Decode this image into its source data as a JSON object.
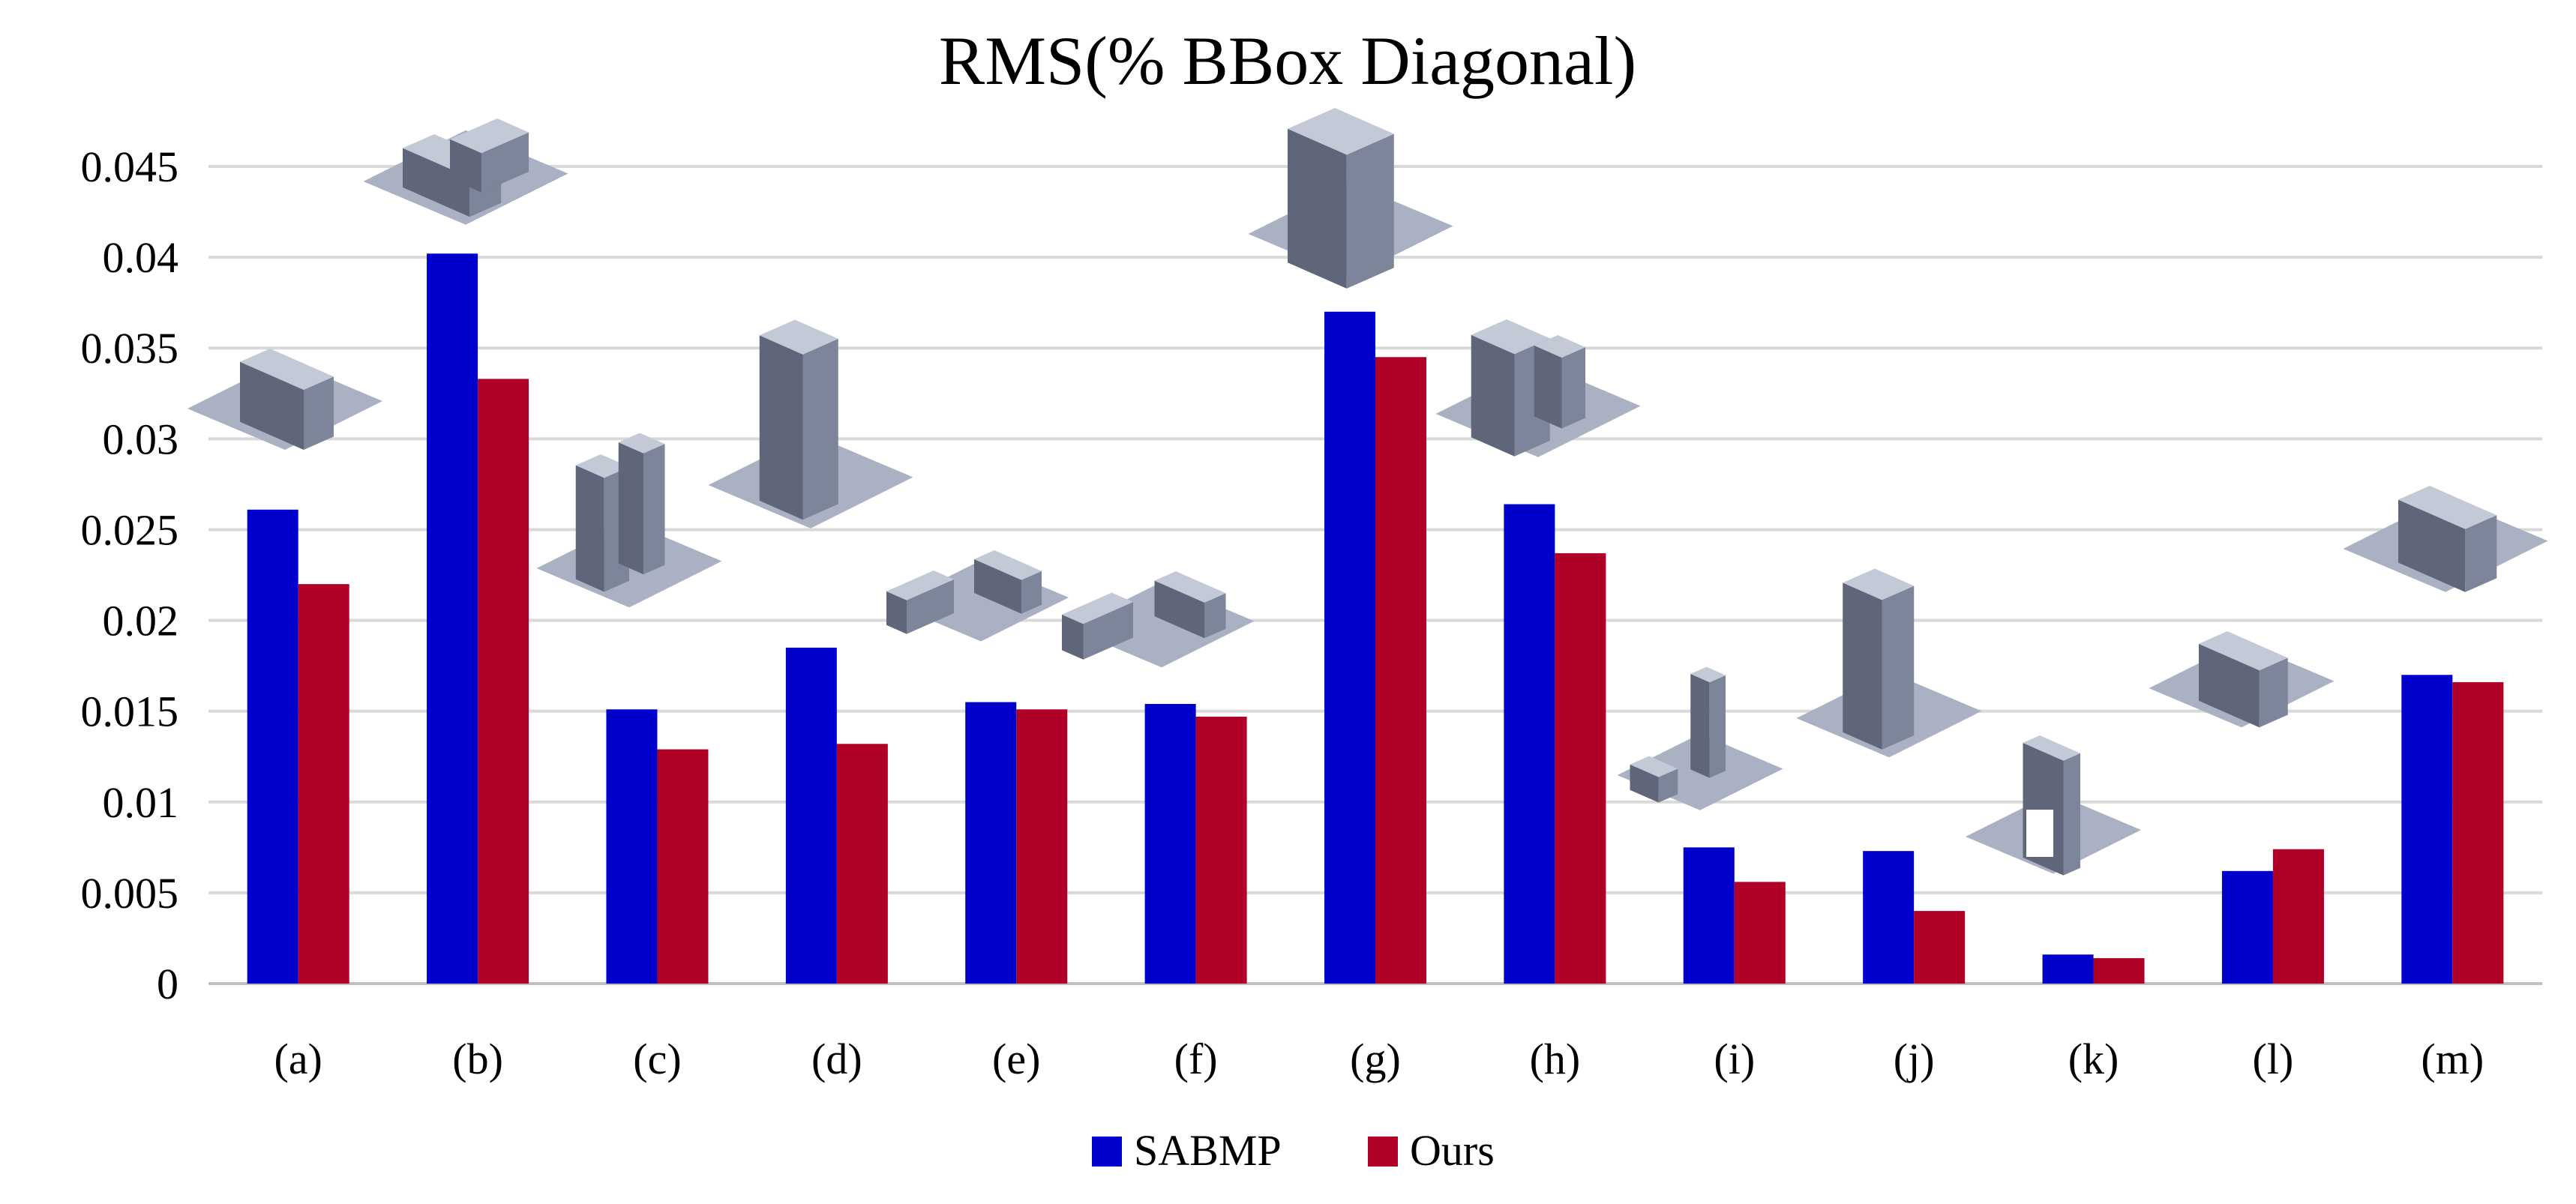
{
  "chart_data": {
    "type": "bar",
    "title": "RMS(% BBox Diagonal)",
    "xlabel": "",
    "ylabel": "",
    "categories": [
      "(a)",
      "(b)",
      "(c)",
      "(d)",
      "(e)",
      "(f)",
      "(g)",
      "(h)",
      "(i)",
      "(j)",
      "(k)",
      "(l)",
      "(m)"
    ],
    "ylim": [
      0,
      0.045
    ],
    "yticks": [
      "0",
      "0.005",
      "0.01",
      "0.015",
      "0.02",
      "0.025",
      "0.03",
      "0.035",
      "0.04",
      "0.045"
    ],
    "grid": true,
    "legend_position": "bottom-center",
    "series": [
      {
        "name": "SABMP",
        "color": "#0000cc",
        "values": [
          0.0261,
          0.0402,
          0.0151,
          0.0185,
          0.0155,
          0.0154,
          0.037,
          0.0264,
          0.0075,
          0.0073,
          0.0016,
          0.0062,
          0.017
        ]
      },
      {
        "name": "Ours",
        "color": "#b00028",
        "values": [
          0.022,
          0.0333,
          0.0129,
          0.0132,
          0.0151,
          0.0147,
          0.0345,
          0.0237,
          0.0056,
          0.004,
          0.0014,
          0.0074,
          0.0166
        ]
      }
    ],
    "thumbnails": [
      {
        "category": "(a)",
        "icon": "long-apartment-block-model"
      },
      {
        "category": "(b)",
        "icon": "l-shaped-flat-roof-building-model"
      },
      {
        "category": "(c)",
        "icon": "twin-tower-building-model"
      },
      {
        "category": "(d)",
        "icon": "tall-tower-building-model"
      },
      {
        "category": "(e)",
        "icon": "u-shaped-building-model"
      },
      {
        "category": "(f)",
        "icon": "courtyard-complex-model"
      },
      {
        "category": "(g)",
        "icon": "dense-block-building-model"
      },
      {
        "category": "(h)",
        "icon": "irregular-building-model"
      },
      {
        "category": "(i)",
        "icon": "dark-tower-with-annex-model"
      },
      {
        "category": "(j)",
        "icon": "rectangular-tower-model"
      },
      {
        "category": "(k)",
        "icon": "triumphal-arch-model"
      },
      {
        "category": "(l)",
        "icon": "corner-building-model"
      },
      {
        "category": "(m)",
        "icon": "wide-apartment-building-model"
      }
    ]
  }
}
